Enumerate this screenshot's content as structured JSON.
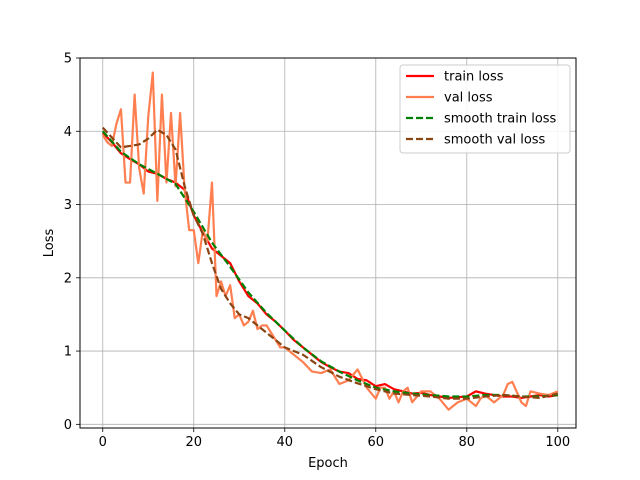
{
  "chart_data": {
    "type": "line",
    "xlabel": "Epoch",
    "ylabel": "Loss",
    "xlim": [
      -5,
      104
    ],
    "ylim": [
      -0.05,
      5
    ],
    "xticks": [
      0,
      20,
      40,
      60,
      80,
      100
    ],
    "yticks": [
      0,
      1,
      2,
      3,
      4,
      5
    ],
    "grid": true,
    "legend_position": "top-right",
    "series": [
      {
        "name": "train loss",
        "color": "#ff0000",
        "style": "solid",
        "x": [
          0,
          2,
          4,
          6,
          8,
          10,
          12,
          14,
          16,
          18,
          20,
          22,
          24,
          26,
          28,
          30,
          32,
          34,
          36,
          38,
          40,
          42,
          44,
          46,
          48,
          50,
          52,
          54,
          56,
          58,
          60,
          62,
          64,
          66,
          68,
          70,
          72,
          74,
          76,
          78,
          80,
          82,
          84,
          86,
          88,
          90,
          92,
          94,
          96,
          98,
          100
        ],
        "values": [
          3.98,
          3.85,
          3.7,
          3.62,
          3.55,
          3.45,
          3.42,
          3.35,
          3.3,
          3.2,
          2.85,
          2.62,
          2.4,
          2.3,
          2.2,
          1.95,
          1.75,
          1.65,
          1.5,
          1.4,
          1.28,
          1.15,
          1.05,
          0.95,
          0.85,
          0.78,
          0.72,
          0.7,
          0.62,
          0.6,
          0.52,
          0.55,
          0.48,
          0.45,
          0.42,
          0.43,
          0.4,
          0.38,
          0.36,
          0.37,
          0.38,
          0.45,
          0.42,
          0.4,
          0.38,
          0.38,
          0.36,
          0.38,
          0.4,
          0.38,
          0.4
        ]
      },
      {
        "name": "val loss",
        "color": "#ff7f50",
        "style": "solid",
        "x": [
          0,
          1,
          2,
          3,
          4,
          5,
          6,
          7,
          8,
          9,
          10,
          11,
          12,
          13,
          14,
          15,
          16,
          17,
          18,
          19,
          20,
          21,
          22,
          23,
          24,
          25,
          26,
          27,
          28,
          29,
          30,
          31,
          32,
          33,
          34,
          35,
          36,
          37,
          38,
          39,
          40,
          42,
          44,
          46,
          48,
          50,
          52,
          54,
          56,
          58,
          60,
          61,
          62,
          63,
          64,
          65,
          66,
          67,
          68,
          70,
          72,
          74,
          76,
          77,
          78,
          80,
          82,
          83,
          84,
          86,
          87,
          88,
          89,
          90,
          92,
          93,
          94,
          96,
          98,
          100
        ],
        "values": [
          3.95,
          3.85,
          3.8,
          4.1,
          4.3,
          3.3,
          3.3,
          4.5,
          3.5,
          3.15,
          4.2,
          4.8,
          3.05,
          4.5,
          3.3,
          4.25,
          3.25,
          4.25,
          3.2,
          2.65,
          2.65,
          2.2,
          2.65,
          2.5,
          3.3,
          1.75,
          1.95,
          1.75,
          1.9,
          1.45,
          1.5,
          1.35,
          1.4,
          1.55,
          1.3,
          1.35,
          1.35,
          1.25,
          1.15,
          1.05,
          1.05,
          0.95,
          0.85,
          0.72,
          0.7,
          0.75,
          0.55,
          0.6,
          0.75,
          0.5,
          0.35,
          0.5,
          0.5,
          0.35,
          0.45,
          0.3,
          0.45,
          0.5,
          0.3,
          0.45,
          0.45,
          0.35,
          0.2,
          0.25,
          0.3,
          0.35,
          0.25,
          0.35,
          0.4,
          0.3,
          0.35,
          0.4,
          0.55,
          0.58,
          0.3,
          0.25,
          0.45,
          0.42,
          0.4,
          0.45
        ]
      },
      {
        "name": "smooth train loss",
        "color": "#008000",
        "style": "dashed",
        "x": [
          0,
          4,
          8,
          12,
          16,
          20,
          24,
          28,
          32,
          36,
          40,
          44,
          48,
          52,
          56,
          60,
          64,
          68,
          72,
          76,
          80,
          84,
          88,
          92,
          96,
          100
        ],
        "values": [
          4.0,
          3.72,
          3.55,
          3.42,
          3.28,
          2.9,
          2.48,
          2.15,
          1.8,
          1.52,
          1.28,
          1.05,
          0.86,
          0.72,
          0.6,
          0.5,
          0.45,
          0.42,
          0.4,
          0.38,
          0.38,
          0.4,
          0.4,
          0.38,
          0.38,
          0.4
        ]
      },
      {
        "name": "smooth val loss",
        "color": "#8b4513",
        "style": "dashed",
        "x": [
          0,
          4,
          8,
          10,
          12,
          14,
          16,
          18,
          20,
          22,
          24,
          26,
          28,
          30,
          32,
          36,
          40,
          44,
          48,
          52,
          56,
          60,
          64,
          68,
          72,
          76,
          80,
          84,
          88,
          92,
          96,
          100
        ],
        "values": [
          4.05,
          3.78,
          3.82,
          3.9,
          4.02,
          3.95,
          3.75,
          3.25,
          2.85,
          2.6,
          2.2,
          1.85,
          1.65,
          1.5,
          1.45,
          1.25,
          1.05,
          0.95,
          0.78,
          0.65,
          0.56,
          0.48,
          0.42,
          0.4,
          0.38,
          0.35,
          0.35,
          0.38,
          0.4,
          0.38,
          0.36,
          0.42
        ]
      }
    ]
  }
}
